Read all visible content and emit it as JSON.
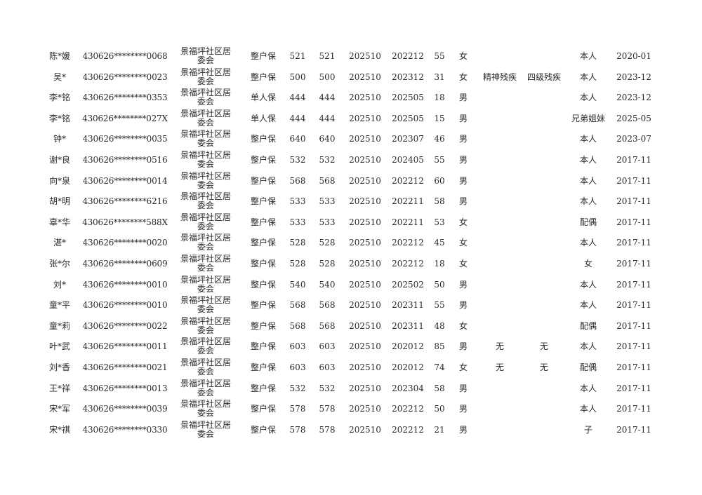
{
  "rows": [
    [
      "陈*媛",
      "430626********0068",
      "景福坪社区居委会",
      "整户保",
      "521",
      "521",
      "202510",
      "202212",
      "55",
      "女",
      "",
      "",
      "本人",
      "2020-01"
    ],
    [
      "吴*",
      "430626********0023",
      "景福坪社区居委会",
      "整户保",
      "500",
      "500",
      "202510",
      "202312",
      "31",
      "女",
      "精神残疾",
      "四级残疾",
      "本人",
      "2023-12"
    ],
    [
      "李*铭",
      "430626********0353",
      "景福坪社区居委会",
      "单人保",
      "444",
      "444",
      "202510",
      "202505",
      "18",
      "男",
      "",
      "",
      "本人",
      "2023-12"
    ],
    [
      "李*铭",
      "430626********027X",
      "景福坪社区居委会",
      "单人保",
      "444",
      "444",
      "202510",
      "202505",
      "15",
      "男",
      "",
      "",
      "兄弟姐妹",
      "2025-05"
    ],
    [
      "钟*",
      "430626********0035",
      "景福坪社区居委会",
      "整户保",
      "640",
      "640",
      "202510",
      "202307",
      "46",
      "男",
      "",
      "",
      "本人",
      "2023-07"
    ],
    [
      "谢*良",
      "430626********0516",
      "景福坪社区居委会",
      "整户保",
      "532",
      "532",
      "202510",
      "202405",
      "55",
      "男",
      "",
      "",
      "本人",
      "2017-11"
    ],
    [
      "向*泉",
      "430626********0014",
      "景福坪社区居委会",
      "整户保",
      "568",
      "568",
      "202510",
      "202212",
      "60",
      "男",
      "",
      "",
      "本人",
      "2017-11"
    ],
    [
      "胡*明",
      "430626********6216",
      "景福坪社区居委会",
      "整户保",
      "533",
      "533",
      "202510",
      "202211",
      "58",
      "男",
      "",
      "",
      "本人",
      "2017-11"
    ],
    [
      "辜*华",
      "430626********588X",
      "景福坪社区居委会",
      "整户保",
      "533",
      "533",
      "202510",
      "202211",
      "53",
      "女",
      "",
      "",
      "配偶",
      "2017-11"
    ],
    [
      "湛*",
      "430626********0020",
      "景福坪社区居委会",
      "整户保",
      "528",
      "528",
      "202510",
      "202212",
      "45",
      "女",
      "",
      "",
      "本人",
      "2017-11"
    ],
    [
      "张*尔",
      "430626********0609",
      "景福坪社区居委会",
      "整户保",
      "528",
      "528",
      "202510",
      "202212",
      "18",
      "女",
      "",
      "",
      "女",
      "2017-11"
    ],
    [
      "刘*",
      "430626********0010",
      "景福坪社区居委会",
      "整户保",
      "540",
      "540",
      "202510",
      "202502",
      "50",
      "男",
      "",
      "",
      "本人",
      "2017-11"
    ],
    [
      "童*平",
      "430626********0010",
      "景福坪社区居委会",
      "整户保",
      "568",
      "568",
      "202510",
      "202311",
      "55",
      "男",
      "",
      "",
      "本人",
      "2017-11"
    ],
    [
      "童*莉",
      "430626********0022",
      "景福坪社区居委会",
      "整户保",
      "568",
      "568",
      "202510",
      "202311",
      "48",
      "女",
      "",
      "",
      "配偶",
      "2017-11"
    ],
    [
      "叶*武",
      "430626********0011",
      "景福坪社区居委会",
      "整户保",
      "603",
      "603",
      "202510",
      "202012",
      "85",
      "男",
      "无",
      "无",
      "本人",
      "2017-11"
    ],
    [
      "刘*香",
      "430626********0021",
      "景福坪社区居委会",
      "整户保",
      "603",
      "603",
      "202510",
      "202012",
      "74",
      "女",
      "无",
      "无",
      "配偶",
      "2017-11"
    ],
    [
      "王*祥",
      "430626********0013",
      "景福坪社区居委会",
      "整户保",
      "532",
      "532",
      "202510",
      "202304",
      "58",
      "男",
      "",
      "",
      "本人",
      "2017-11"
    ],
    [
      "宋*军",
      "430626********0039",
      "景福坪社区居委会",
      "整户保",
      "578",
      "578",
      "202510",
      "202212",
      "50",
      "男",
      "",
      "",
      "本人",
      "2017-11"
    ],
    [
      "宋*祺",
      "430626********0330",
      "景福坪社区居委会",
      "整户保",
      "578",
      "578",
      "202510",
      "202212",
      "21",
      "男",
      "",
      "",
      "子",
      "2017-11"
    ]
  ]
}
